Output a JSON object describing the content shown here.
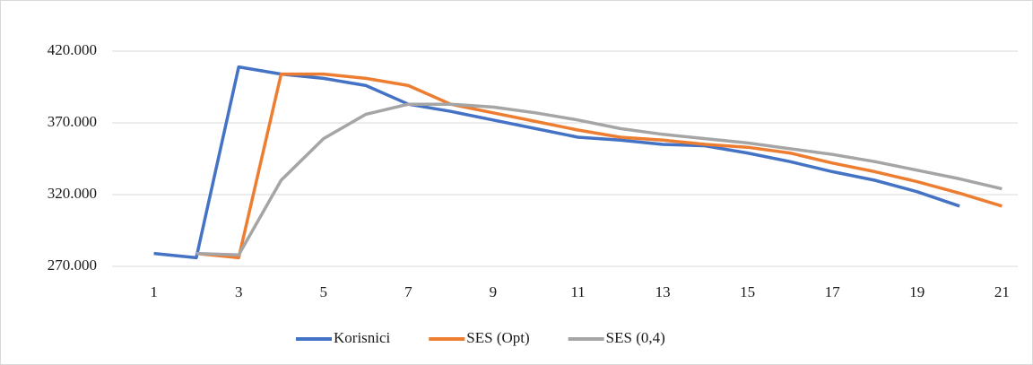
{
  "chart_data": {
    "type": "line",
    "categories": [
      "1",
      null,
      "3",
      null,
      "5",
      null,
      "7",
      null,
      "9",
      null,
      "11",
      null,
      "13",
      null,
      "15",
      null,
      "17",
      null,
      "19",
      null,
      "21"
    ],
    "series": [
      {
        "name": "Korisnici",
        "color": "#4472c4",
        "values": [
          279000,
          276000,
          409000,
          404000,
          401000,
          396000,
          383000,
          378000,
          372000,
          366000,
          360000,
          358000,
          355000,
          354000,
          349000,
          343000,
          336000,
          330000,
          322000,
          312000,
          null
        ]
      },
      {
        "name": "SES (Opt)",
        "color": "#ed7d31",
        "values": [
          null,
          279000,
          276000,
          404000,
          404000,
          401000,
          396000,
          383000,
          377000,
          371000,
          365000,
          360000,
          358000,
          355000,
          353000,
          349000,
          342000,
          336000,
          329000,
          321000,
          312000
        ]
      },
      {
        "name": "SES (0,4)",
        "color": "#a5a5a5",
        "values": [
          null,
          279000,
          278000,
          330000,
          359000,
          376000,
          383000,
          383000,
          381000,
          377000,
          372000,
          366000,
          362000,
          359000,
          356000,
          352000,
          348000,
          343000,
          337000,
          331000,
          324000
        ]
      }
    ],
    "ylim": [
      270000,
      420000
    ],
    "yticks": [
      {
        "value": 270000,
        "label": "270.000"
      },
      {
        "value": 320000,
        "label": "320.000"
      },
      {
        "value": 370000,
        "label": "370.000"
      },
      {
        "value": 420000,
        "label": "420.000"
      }
    ],
    "grid": true,
    "legend": "bottom"
  }
}
